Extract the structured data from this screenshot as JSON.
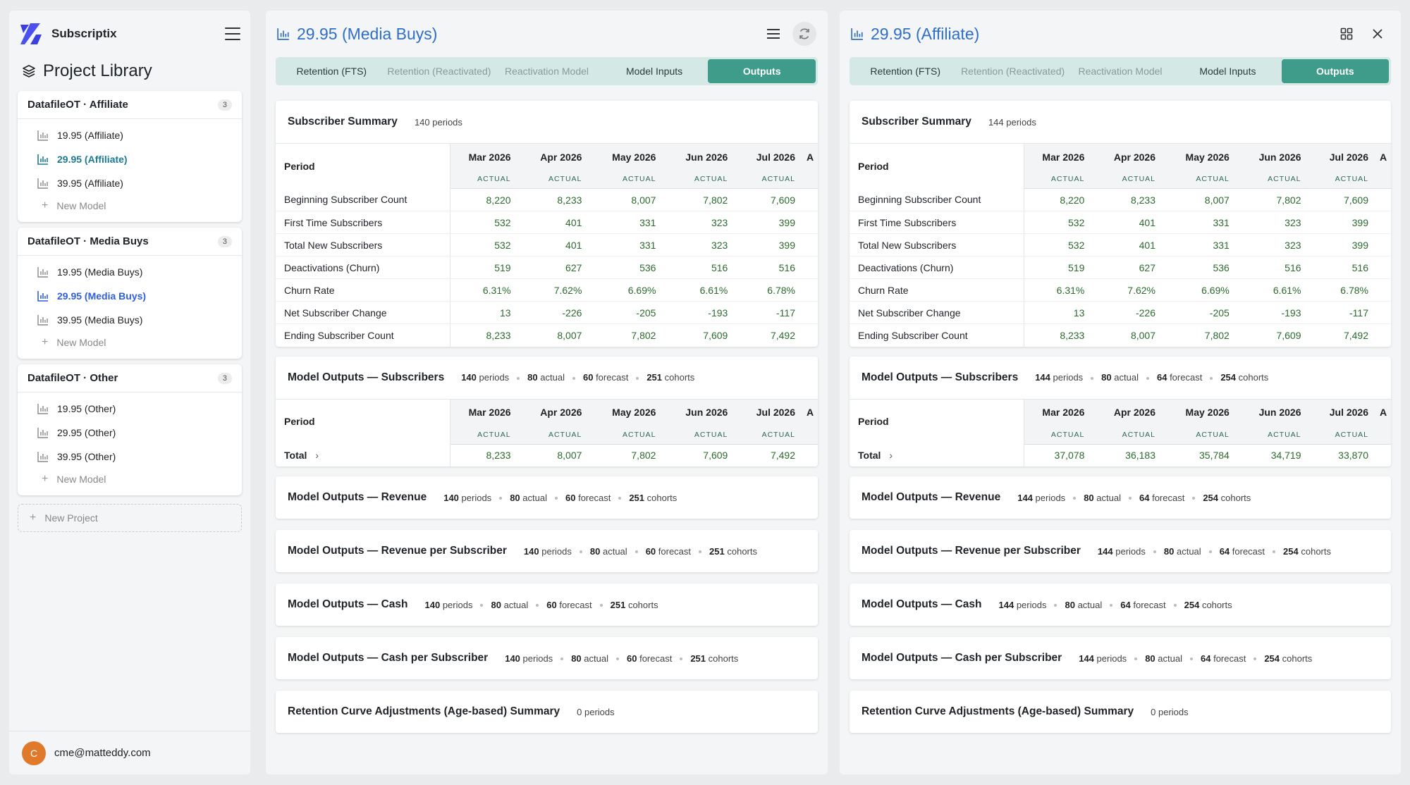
{
  "brand": {
    "name": "Subscriptix"
  },
  "library": {
    "title": "Project Library",
    "projects": [
      {
        "name": "DatafileOT · Affiliate",
        "count": "3",
        "models": [
          "19.95 (Affiliate)",
          "29.95 (Affiliate)",
          "39.95 (Affiliate)"
        ]
      },
      {
        "name": "DatafileOT · Media Buys",
        "count": "3",
        "models": [
          "19.95 (Media Buys)",
          "29.95 (Media Buys)",
          "39.95 (Media Buys)"
        ]
      },
      {
        "name": "DatafileOT · Other",
        "count": "3",
        "models": [
          "19.95 (Other)",
          "29.95 (Other)",
          "39.95 (Other)"
        ]
      }
    ],
    "new_model": "New Model",
    "new_project": "New Project"
  },
  "user": {
    "initial": "C",
    "email": "cme@matteddy.com"
  },
  "tabs": [
    "Retention (FTS)",
    "Retention (Reactivated)",
    "Reactivation Model",
    "Model Inputs",
    "Outputs"
  ],
  "months": [
    "Mar 2026",
    "Apr 2026",
    "May 2026",
    "Jun 2026",
    "Jul 2026"
  ],
  "actual_label": "ACTUAL",
  "period_label": "Period",
  "total_label": "Total",
  "summary_rows": [
    "Beginning Subscriber Count",
    "First Time Subscribers",
    "Total New Subscribers",
    "Deactivations (Churn)",
    "Churn Rate",
    "Net Subscriber Change",
    "Ending Subscriber Count"
  ],
  "section_titles": {
    "summary": "Subscriber Summary",
    "subscribers": "Model Outputs — Subscribers",
    "revenue": "Model Outputs — Revenue",
    "revenue_per": "Model Outputs — Revenue per Subscriber",
    "cash": "Model Outputs — Cash",
    "cash_per": "Model Outputs — Cash per Subscriber",
    "retention_adj": "Retention Curve Adjustments (Age-based) Summary"
  },
  "meta_words": {
    "periods": "periods",
    "actual": "actual",
    "forecast": "forecast",
    "cohorts": "cohorts"
  },
  "panels": [
    {
      "title": "29.95 (Media Buys)",
      "periods": "140",
      "actual": "80",
      "forecast": "60",
      "cohorts": "251",
      "retention_periods": "0",
      "summary_values": [
        [
          "8,220",
          "8,233",
          "8,007",
          "7,802",
          "7,609"
        ],
        [
          "532",
          "401",
          "331",
          "323",
          "399"
        ],
        [
          "532",
          "401",
          "331",
          "323",
          "399"
        ],
        [
          "519",
          "627",
          "536",
          "516",
          "516"
        ],
        [
          "6.31%",
          "7.62%",
          "6.69%",
          "6.61%",
          "6.78%"
        ],
        [
          "13",
          "-226",
          "-205",
          "-193",
          "-117"
        ],
        [
          "8,233",
          "8,007",
          "7,802",
          "7,609",
          "7,492"
        ]
      ],
      "total_values": [
        "8,233",
        "8,007",
        "7,802",
        "7,609",
        "7,492"
      ]
    },
    {
      "title": "29.95 (Affiliate)",
      "periods": "144",
      "actual": "80",
      "forecast": "64",
      "cohorts": "254",
      "retention_periods": "0",
      "summary_values": [
        [
          "8,220",
          "8,233",
          "8,007",
          "7,802",
          "7,609"
        ],
        [
          "532",
          "401",
          "331",
          "323",
          "399"
        ],
        [
          "532",
          "401",
          "331",
          "323",
          "399"
        ],
        [
          "519",
          "627",
          "536",
          "516",
          "516"
        ],
        [
          "6.31%",
          "7.62%",
          "6.69%",
          "6.61%",
          "6.78%"
        ],
        [
          "13",
          "-226",
          "-205",
          "-193",
          "-117"
        ],
        [
          "8,233",
          "8,007",
          "7,802",
          "7,609",
          "7,492"
        ]
      ],
      "total_values": [
        "37,078",
        "36,183",
        "35,784",
        "34,719",
        "33,870"
      ]
    }
  ],
  "colors": {
    "accent": "#3f9b8a",
    "tab_bar": "#d4e9e6",
    "title_blue": "#2f6fc6",
    "value_green": "#2d6a2f",
    "avatar": "#e07a2a"
  },
  "icons": [
    "layers-icon",
    "bar-chart-icon",
    "menu-icon",
    "refresh-icon",
    "grid-icon",
    "close-icon",
    "plus-icon",
    "chevron-right-icon"
  ]
}
